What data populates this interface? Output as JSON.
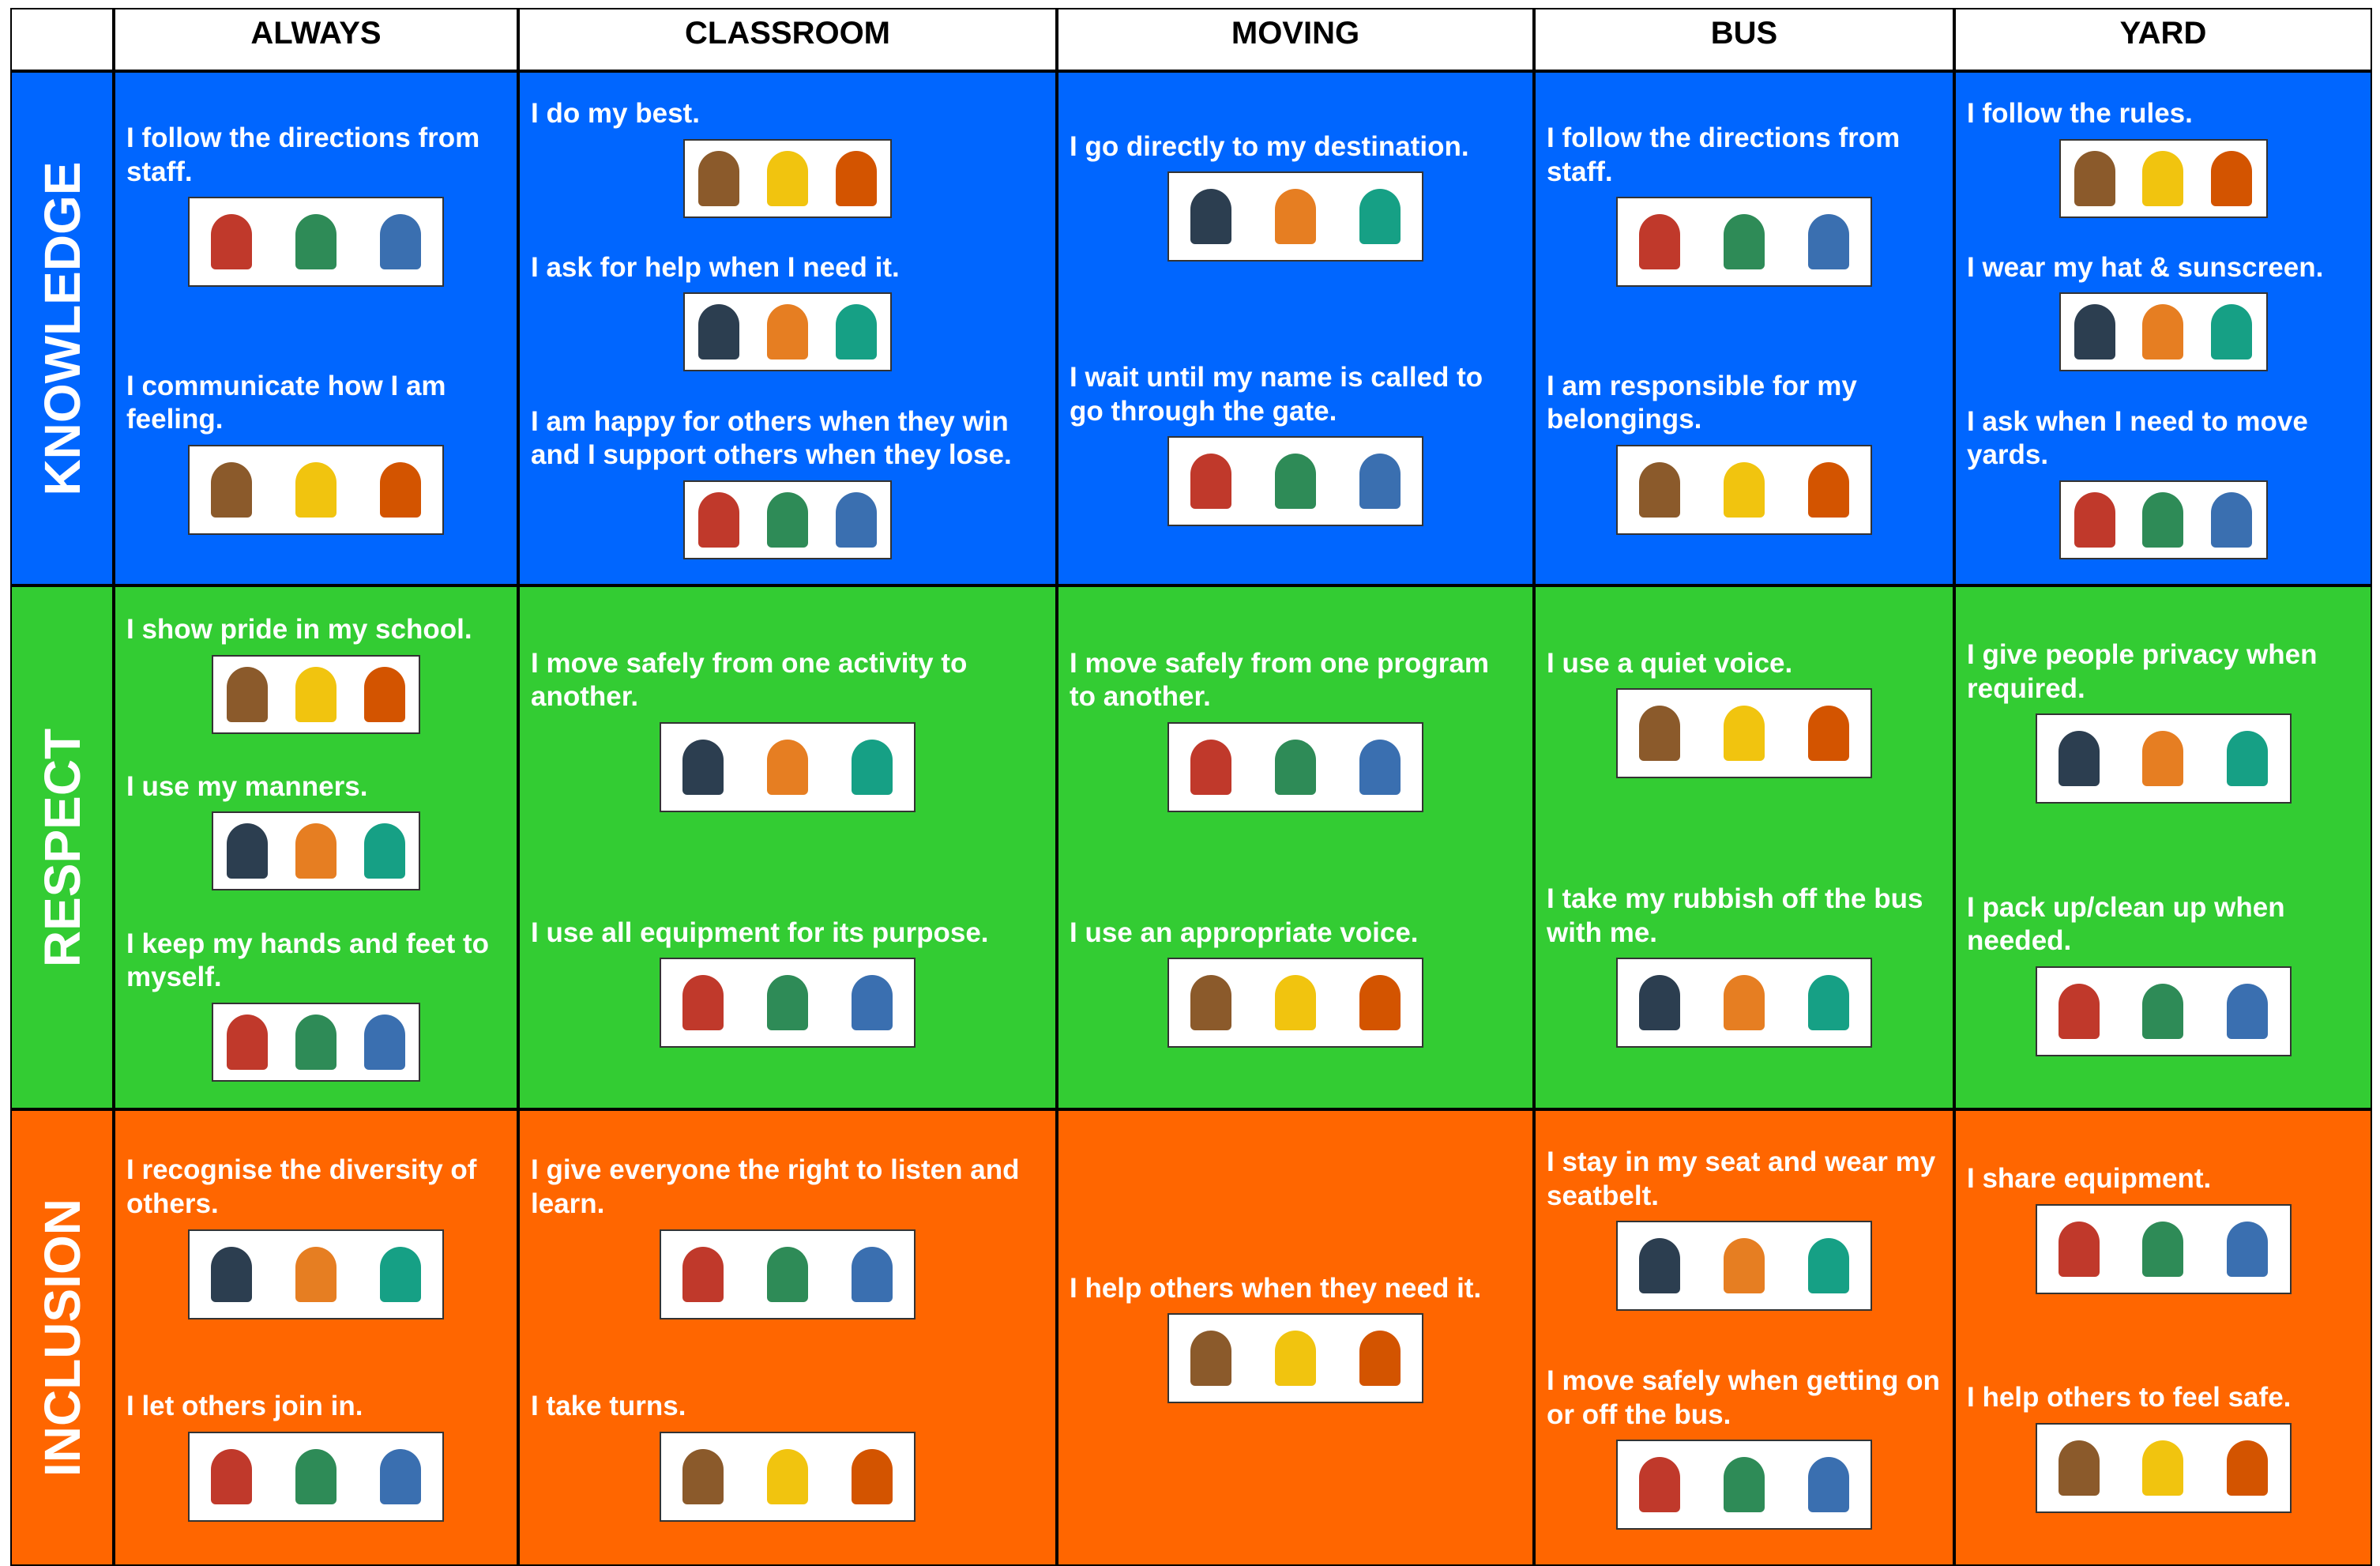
{
  "header": {
    "columns": [
      "ALWAYS",
      "CLASSROOM",
      "MOVING",
      "BUS",
      "YARD"
    ]
  },
  "rows": [
    {
      "label": "KNOWLEDGE",
      "cells": [
        [
          "I follow the directions from staff.",
          "I communicate how I am feeling."
        ],
        [
          "I do my best.",
          "I ask for help when I need it.",
          "I am happy for others when they win and I support others when they lose."
        ],
        [
          "I go directly to my destination.",
          "I wait until my name is called to go through the gate."
        ],
        [
          "I follow the directions from staff.",
          "I am responsible for my belongings."
        ],
        [
          "I follow the rules.",
          "I wear my hat & sunscreen.",
          "I ask when I need to move yards."
        ]
      ]
    },
    {
      "label": "RESPECT",
      "cells": [
        [
          "I show pride in my school.",
          "I use my manners.",
          "I keep my hands and feet to myself."
        ],
        [
          "I move safely from one activity to another.",
          "I use all equipment for its purpose."
        ],
        [
          "I move safely from one program to another.",
          "I use an appropriate voice."
        ],
        [
          "I use a quiet voice.",
          "I take my rubbish off the bus with me."
        ],
        [
          "I give people privacy when required.",
          "I pack up/clean up when needed."
        ]
      ]
    },
    {
      "label": "INCLUSION",
      "cells": [
        [
          "I recognise the diversity of others.",
          "I let others join in."
        ],
        [
          "I give everyone the right to listen and learn.",
          "I take turns."
        ],
        [
          "I help others when they need it."
        ],
        [
          "I stay in my seat and wear my seatbelt.",
          "I move safely when getting on or off the bus."
        ],
        [
          "I share equipment.",
          "I help others to feel safe."
        ]
      ]
    }
  ]
}
